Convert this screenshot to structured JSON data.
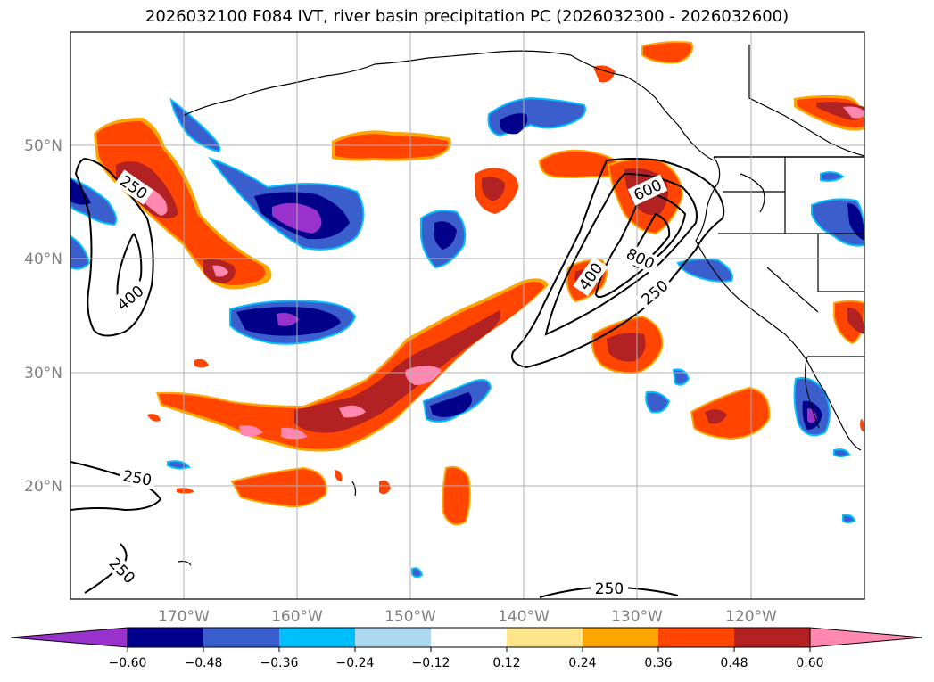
{
  "title": "2026032100 F084 IVT, river basin precipitation PC (2026032300 - 2026032600)",
  "latitude_labels": [
    "50°N",
    "40°N",
    "30°N",
    "20°N"
  ],
  "longitude_labels": [
    "170°W",
    "160°W",
    "150°W",
    "140°W",
    "130°W",
    "120°W"
  ],
  "ivt_contour_labels": [
    "250",
    "400",
    "250",
    "250",
    "250",
    "600",
    "800",
    "400",
    "250"
  ],
  "colorbar": {
    "ticks": [
      "−0.60",
      "−0.48",
      "−0.36",
      "−0.24",
      "−0.12",
      "0.12",
      "0.24",
      "0.36",
      "0.48",
      "0.60"
    ],
    "colors": [
      "#9932cc",
      "#00008b",
      "#3a5fcd",
      "#00bfff",
      "#add8f0",
      "#ffffff",
      "#ffe68c",
      "#ffa500",
      "#ff4500",
      "#b22222",
      "#ff88b0"
    ]
  },
  "colors": {
    "strong_positive": "#ff88b0",
    "positive": "#b22222",
    "moderate_positive": "#ff4500",
    "weak_positive": "#ffa500",
    "strong_negative": "#9932cc",
    "negative": "#00008b",
    "moderate_negative": "#3a5fcd",
    "weak_negative": "#00bfff"
  }
}
